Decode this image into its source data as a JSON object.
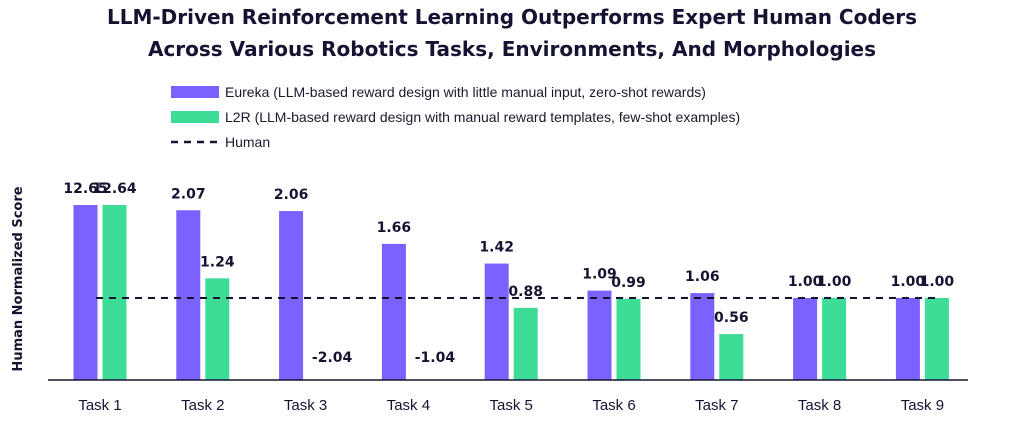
{
  "chart_data": {
    "type": "bar",
    "title_lines": [
      "LLM-Driven Reinforcement Learning Outperforms Expert Human Coders",
      "Across Various Robotics Tasks, Environments, And Morphologies"
    ],
    "ylabel": "Human Normalized Score",
    "xlabel": "",
    "categories": [
      "Task 1",
      "Task 2",
      "Task 3",
      "Task 4",
      "Task 5",
      "Task 6",
      "Task 7",
      "Task 8",
      "Task 9"
    ],
    "series": [
      {
        "name": "Eureka (LLM-based reward design with little manual input, zero-shot rewards)",
        "color": "#7b61ff",
        "values": [
          12.65,
          2.07,
          2.06,
          1.66,
          1.42,
          1.09,
          1.06,
          1.0,
          1.0
        ],
        "labels": [
          "12.65",
          "2.07",
          "2.06",
          "1.66",
          "1.42",
          "1.09",
          "1.06",
          "1.00",
          "1.00"
        ]
      },
      {
        "name": "L2R (LLM-based reward design with manual reward templates, few-shot examples)",
        "color": "#3ddc97",
        "values": [
          12.64,
          1.24,
          -2.04,
          -1.04,
          0.88,
          0.99,
          0.56,
          1.0,
          1.0
        ],
        "labels": [
          "12.64",
          "1.24",
          "-2.04",
          "-1.04",
          "0.88",
          "0.99",
          "0.56",
          "1.00",
          "1.00"
        ]
      }
    ],
    "reference_line": {
      "name": "Human",
      "value": 1.0,
      "color": "#141432",
      "style": "dashed"
    },
    "legend_position": "top-center",
    "grid": false,
    "axis_note": "y-axis not linear; values above 2.07 compressed, negative values not drawn below baseline"
  }
}
